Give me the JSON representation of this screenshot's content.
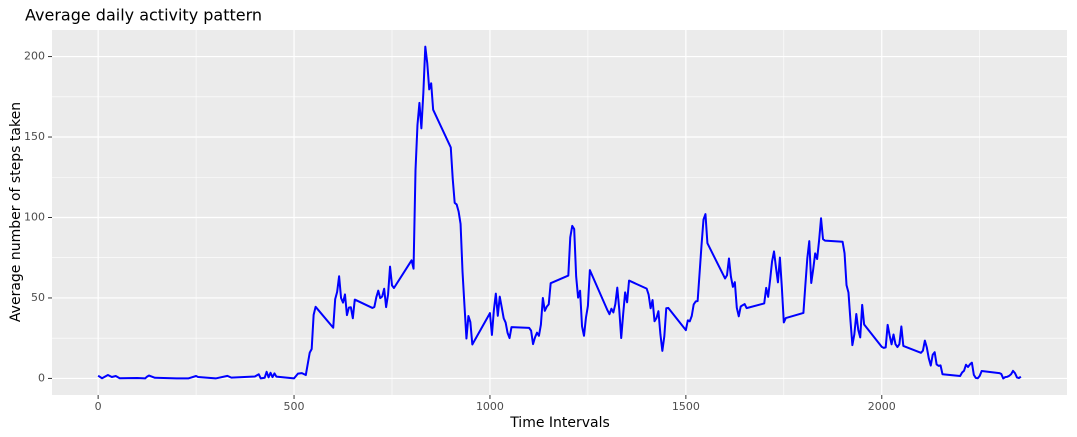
{
  "chart_data": {
    "type": "line",
    "title": "Average daily activity pattern",
    "x_label": "Time Intervals",
    "y_label": "Average number of steps taken",
    "x": [
      0,
      10,
      25,
      35,
      45,
      55,
      100,
      120,
      125,
      130,
      145,
      200,
      230,
      250,
      255,
      300,
      330,
      340,
      400,
      410,
      415,
      425,
      430,
      435,
      440,
      445,
      450,
      455,
      500,
      510,
      520,
      530,
      540,
      545,
      550,
      555,
      600,
      605,
      610,
      615,
      620,
      625,
      630,
      635,
      640,
      645,
      650,
      655,
      700,
      705,
      710,
      715,
      720,
      725,
      730,
      735,
      740,
      745,
      750,
      755,
      800,
      805,
      810,
      815,
      820,
      825,
      830,
      835,
      840,
      845,
      850,
      855,
      900,
      905,
      910,
      915,
      920,
      925,
      930,
      935,
      940,
      945,
      950,
      955,
      1000,
      1005,
      1010,
      1015,
      1020,
      1025,
      1030,
      1035,
      1040,
      1045,
      1050,
      1055,
      1100,
      1105,
      1110,
      1115,
      1120,
      1125,
      1130,
      1135,
      1140,
      1145,
      1150,
      1155,
      1200,
      1205,
      1210,
      1215,
      1220,
      1225,
      1230,
      1235,
      1240,
      1245,
      1250,
      1255,
      1300,
      1305,
      1310,
      1315,
      1320,
      1325,
      1330,
      1335,
      1340,
      1345,
      1350,
      1355,
      1400,
      1405,
      1410,
      1415,
      1420,
      1425,
      1430,
      1435,
      1440,
      1445,
      1450,
      1455,
      1500,
      1505,
      1510,
      1515,
      1520,
      1525,
      1530,
      1535,
      1540,
      1545,
      1550,
      1555,
      1600,
      1605,
      1610,
      1615,
      1620,
      1625,
      1630,
      1635,
      1640,
      1645,
      1650,
      1655,
      1700,
      1705,
      1710,
      1715,
      1720,
      1725,
      1730,
      1735,
      1740,
      1745,
      1750,
      1755,
      1800,
      1805,
      1810,
      1815,
      1820,
      1825,
      1830,
      1835,
      1840,
      1845,
      1850,
      1855,
      1900,
      1905,
      1910,
      1915,
      1920,
      1925,
      1930,
      1935,
      1940,
      1945,
      1950,
      1955,
      2000,
      2005,
      2010,
      2015,
      2020,
      2025,
      2030,
      2035,
      2040,
      2045,
      2050,
      2055,
      2100,
      2105,
      2110,
      2115,
      2120,
      2125,
      2130,
      2135,
      2140,
      2145,
      2150,
      2155,
      2200,
      2205,
      2210,
      2215,
      2220,
      2225,
      2230,
      2235,
      2240,
      2245,
      2250,
      2255,
      2300,
      2305,
      2310,
      2315,
      2320,
      2325,
      2330,
      2335,
      2340,
      2345,
      2350,
      2355
    ],
    "series": [
      {
        "color": "#0000ff",
        "values": [
          1.7,
          0.1,
          2.1,
          0.9,
          1.5,
          0.1,
          0.3,
          0,
          1.1,
          1.8,
          0.4,
          0,
          0,
          1.5,
          0.9,
          0,
          1.6,
          0.5,
          1.2,
          2.6,
          0,
          0.4,
          4.1,
          0.7,
          3.5,
          0.8,
          3.1,
          1.1,
          0,
          3.0,
          3.3,
          2.1,
          16,
          18.3,
          39.5,
          44.5,
          31.5,
          49.3,
          53.8,
          63.5,
          50,
          47.1,
          52.2,
          39.3,
          44,
          44.2,
          37.4,
          49,
          43.8,
          44.4,
          50.5,
          54.5,
          49.9,
          50.9,
          55.7,
          44.3,
          52.3,
          69.5,
          57.8,
          56.2,
          73.4,
          68.2,
          129.4,
          157.5,
          171.2,
          155.4,
          177.3,
          206.2,
          195.9,
          179.6,
          183.4,
          167,
          143.5,
          124,
          109.1,
          108.1,
          103.7,
          96,
          66.2,
          45.2,
          24.8,
          38.8,
          35,
          21.1,
          40.6,
          27,
          42.4,
          52.7,
          38.9,
          50.8,
          44.3,
          37.4,
          34.7,
          28.3,
          25.1,
          31.9,
          31.4,
          29.7,
          21.3,
          25.5,
          28.4,
          26.5,
          33.4,
          50,
          42,
          44.6,
          46,
          59.2,
          63.9,
          87.7,
          94.8,
          92.8,
          63.4,
          50.2,
          54.5,
          32.4,
          26.5,
          37.7,
          45.1,
          67.3,
          42.3,
          39.9,
          43.3,
          41,
          46.2,
          56.4,
          42.8,
          25.1,
          40,
          53.5,
          47.3,
          60.8,
          55.8,
          52,
          43.6,
          48.7,
          35.5,
          37.5,
          41.8,
          27.5,
          17.1,
          26.1,
          43.6,
          43.8,
          30,
          36.1,
          35.5,
          38.8,
          46,
          47.8,
          48.1,
          65.3,
          82.9,
          98.7,
          102.1,
          84,
          62.1,
          64.1,
          74.5,
          63.2,
          56.9,
          59.8,
          43.9,
          38.6,
          44.7,
          45.5,
          46.2,
          43.7,
          46.6,
          56.3,
          50.7,
          61.2,
          72.7,
          78.9,
          68.9,
          59.7,
          75.1,
          56.5,
          34.8,
          37.5,
          40.7,
          58,
          74.7,
          85.3,
          59.3,
          67.8,
          77.7,
          74.2,
          85.6,
          99.5,
          86.6,
          85.6,
          84.9,
          77.8,
          58,
          53.4,
          36.3,
          20.7,
          27.4,
          40,
          30.2,
          25.5,
          45.7,
          33.5,
          19.6,
          19,
          19.3,
          33.3,
          26.8,
          21.2,
          27.3,
          21.3,
          19.5,
          21.3,
          32.3,
          20.2,
          15.9,
          17.2,
          23.5,
          19.2,
          12.5,
          8,
          14.7,
          16.3,
          8.7,
          7.8,
          8.1,
          2.6,
          1.5,
          3.7,
          4.8,
          8.5,
          7.1,
          8.7,
          9.8,
          2.2,
          0.3,
          0.1,
          1.6,
          4.6,
          3.3,
          2.8,
          0,
          0.8,
          1,
          1.6,
          2.6,
          4.7,
          3.3,
          0.6,
          0.2,
          1.1
        ]
      }
    ],
    "xlim": [
      -117.75,
      2472.75
    ],
    "ylim": [
      -10.3,
      216.5
    ],
    "xticks": [
      0,
      500,
      1000,
      1500,
      2000
    ],
    "yticks": [
      0,
      50,
      100,
      150,
      200
    ],
    "xminor": [
      250,
      750,
      1250,
      1750,
      2250
    ],
    "yminor": [
      25,
      75,
      125,
      175
    ],
    "grid": true,
    "panel_color": "#ebebeb",
    "grid_color": "#ffffff"
  }
}
